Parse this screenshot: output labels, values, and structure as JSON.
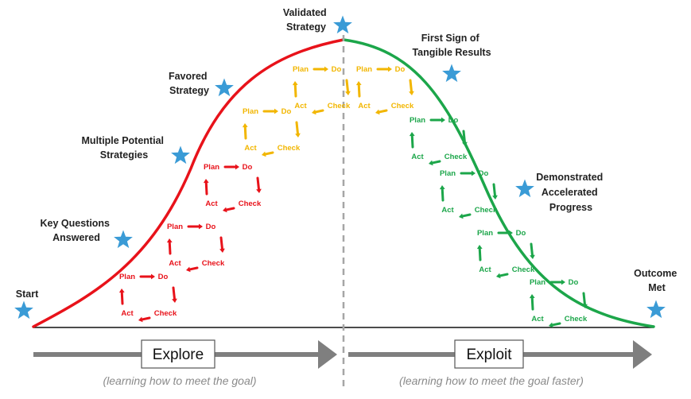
{
  "colors": {
    "explore": "#e8121a",
    "midpoint": "#f2b600",
    "exploit": "#1ca64a",
    "star": "#3a9bd6",
    "arrow": "#7f7f7f",
    "divider": "#a6a6a6"
  },
  "milestones": {
    "start": [
      "Start"
    ],
    "key_questions": [
      "Key Questions",
      "Answered"
    ],
    "multiple_strategies": [
      "Multiple Potential",
      "Strategies"
    ],
    "favored_strategy": [
      "Favored",
      "Strategy"
    ],
    "validated_strategy": [
      "Validated",
      "Strategy"
    ],
    "first_sign": [
      "First Sign of",
      "Tangible Results"
    ],
    "demonstrated": [
      "Demonstrated",
      "Accelerated",
      "Progress"
    ],
    "outcome_met": [
      "Outcome",
      "Met"
    ]
  },
  "phases": {
    "explore": {
      "label": "Explore",
      "subtitle": "(learning how to meet the goal)"
    },
    "exploit": {
      "label": "Exploit",
      "subtitle": "(learning how to meet the goal faster)"
    }
  },
  "cycle": {
    "plan": "Plan",
    "do": "Do",
    "check": "Check",
    "act": "Act"
  },
  "cycles": [
    {
      "color": "explore"
    },
    {
      "color": "explore"
    },
    {
      "color": "explore"
    },
    {
      "color": "midpoint"
    },
    {
      "color": "midpoint"
    },
    {
      "color": "midpoint"
    },
    {
      "color": "exploit"
    },
    {
      "color": "exploit"
    },
    {
      "color": "exploit"
    },
    {
      "color": "exploit"
    }
  ]
}
